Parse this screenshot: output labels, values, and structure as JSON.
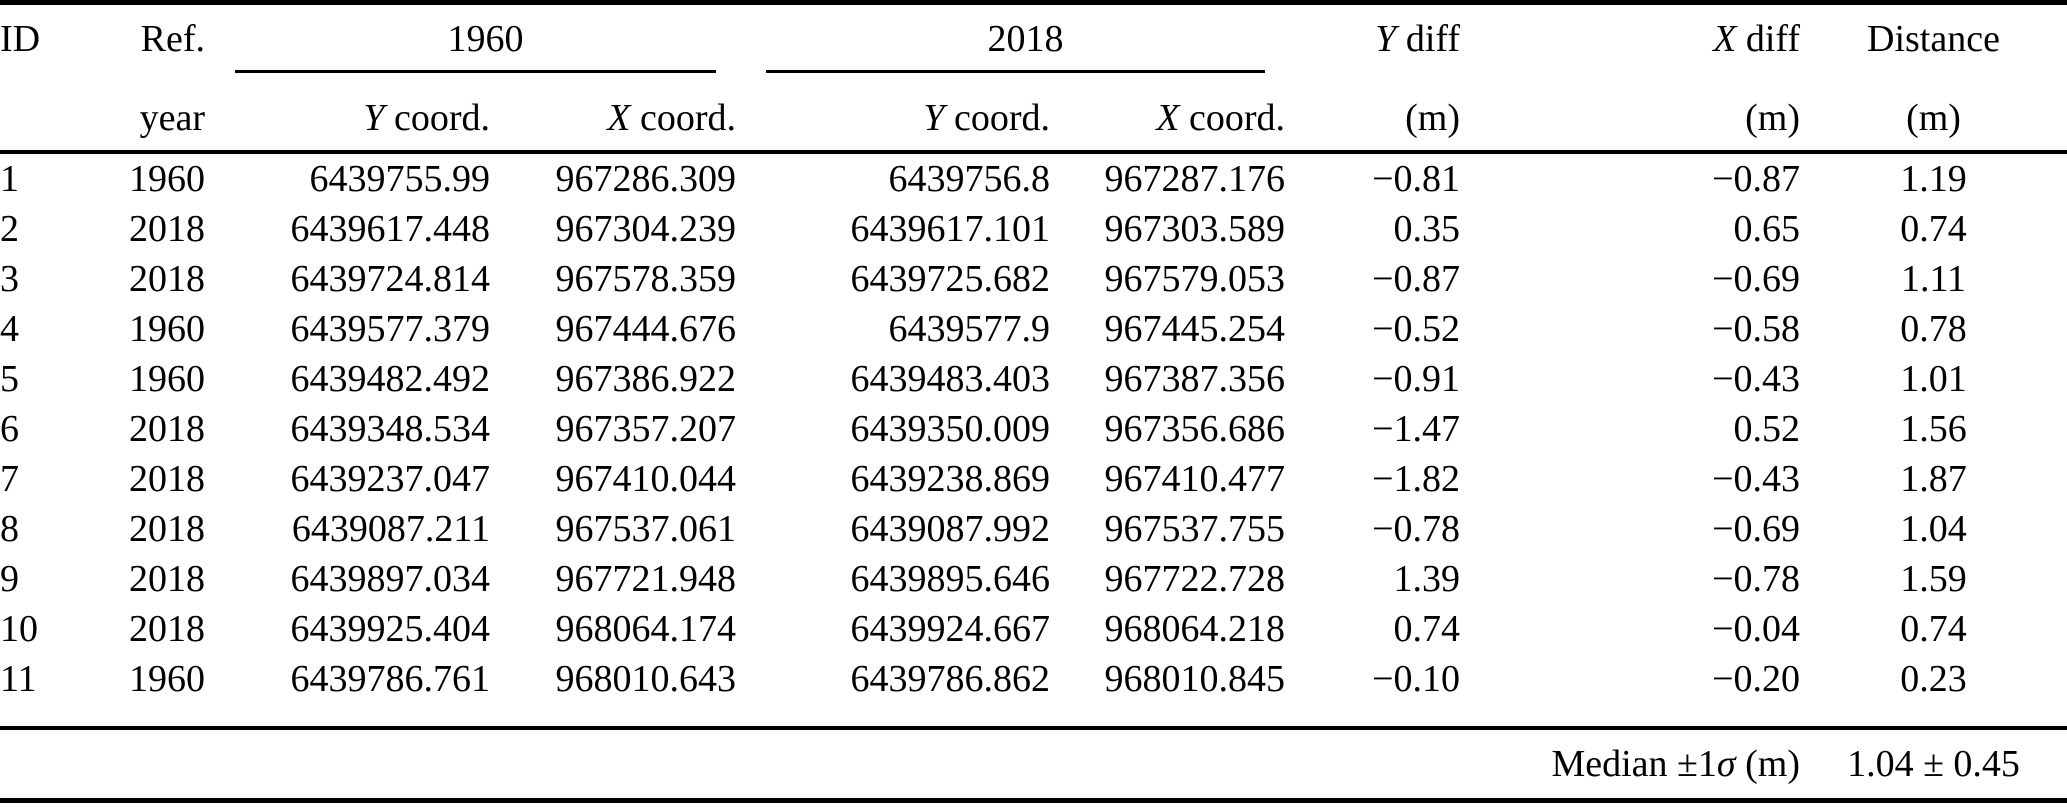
{
  "table": {
    "header": {
      "id_label": "ID",
      "ref_label": "Ref.",
      "year_label": "year",
      "group_1960_label": "1960",
      "group_2018_label": "2018",
      "coord_var_y": "Y",
      "coord_var_x": "X",
      "coord_rest": " coord.",
      "diff_var_y": "Y",
      "diff_var_x": "X",
      "diff_rest": " diff",
      "distance_label": "Distance",
      "unit_label": "(m)"
    },
    "rows": [
      {
        "id": "1",
        "ref_year": "1960",
        "y1960": "6439755.99",
        "x1960": "967286.309",
        "y2018": "6439756.8",
        "x2018": "967287.176",
        "y_diff": "−0.81",
        "x_diff": "−0.87",
        "distance": "1.19"
      },
      {
        "id": "2",
        "ref_year": "2018",
        "y1960": "6439617.448",
        "x1960": "967304.239",
        "y2018": "6439617.101",
        "x2018": "967303.589",
        "y_diff": "0.35",
        "x_diff": "0.65",
        "distance": "0.74"
      },
      {
        "id": "3",
        "ref_year": "2018",
        "y1960": "6439724.814",
        "x1960": "967578.359",
        "y2018": "6439725.682",
        "x2018": "967579.053",
        "y_diff": "−0.87",
        "x_diff": "−0.69",
        "distance": "1.11"
      },
      {
        "id": "4",
        "ref_year": "1960",
        "y1960": "6439577.379",
        "x1960": "967444.676",
        "y2018": "6439577.9",
        "x2018": "967445.254",
        "y_diff": "−0.52",
        "x_diff": "−0.58",
        "distance": "0.78"
      },
      {
        "id": "5",
        "ref_year": "1960",
        "y1960": "6439482.492",
        "x1960": "967386.922",
        "y2018": "6439483.403",
        "x2018": "967387.356",
        "y_diff": "−0.91",
        "x_diff": "−0.43",
        "distance": "1.01"
      },
      {
        "id": "6",
        "ref_year": "2018",
        "y1960": "6439348.534",
        "x1960": "967357.207",
        "y2018": "6439350.009",
        "x2018": "967356.686",
        "y_diff": "−1.47",
        "x_diff": "0.52",
        "distance": "1.56"
      },
      {
        "id": "7",
        "ref_year": "2018",
        "y1960": "6439237.047",
        "x1960": "967410.044",
        "y2018": "6439238.869",
        "x2018": "967410.477",
        "y_diff": "−1.82",
        "x_diff": "−0.43",
        "distance": "1.87"
      },
      {
        "id": "8",
        "ref_year": "2018",
        "y1960": "6439087.211",
        "x1960": "967537.061",
        "y2018": "6439087.992",
        "x2018": "967537.755",
        "y_diff": "−0.78",
        "x_diff": "−0.69",
        "distance": "1.04"
      },
      {
        "id": "9",
        "ref_year": "2018",
        "y1960": "6439897.034",
        "x1960": "967721.948",
        "y2018": "6439895.646",
        "x2018": "967722.728",
        "y_diff": "1.39",
        "x_diff": "−0.78",
        "distance": "1.59"
      },
      {
        "id": "10",
        "ref_year": "2018",
        "y1960": "6439925.404",
        "x1960": "968064.174",
        "y2018": "6439924.667",
        "x2018": "968064.218",
        "y_diff": "0.74",
        "x_diff": "−0.04",
        "distance": "0.74"
      },
      {
        "id": "11",
        "ref_year": "1960",
        "y1960": "6439786.761",
        "x1960": "968010.643",
        "y2018": "6439786.862",
        "x2018": "968010.845",
        "y_diff": "−0.10",
        "x_diff": "−0.20",
        "distance": "0.23"
      }
    ],
    "footer": {
      "median_prefix": "Median ±1",
      "median_sigma": "σ",
      "median_unit": " (m)",
      "median_value": "1.04 ± 0.45"
    },
    "colors": {
      "text": "#000000",
      "rule": "#000000",
      "background": "#ffffff"
    }
  }
}
